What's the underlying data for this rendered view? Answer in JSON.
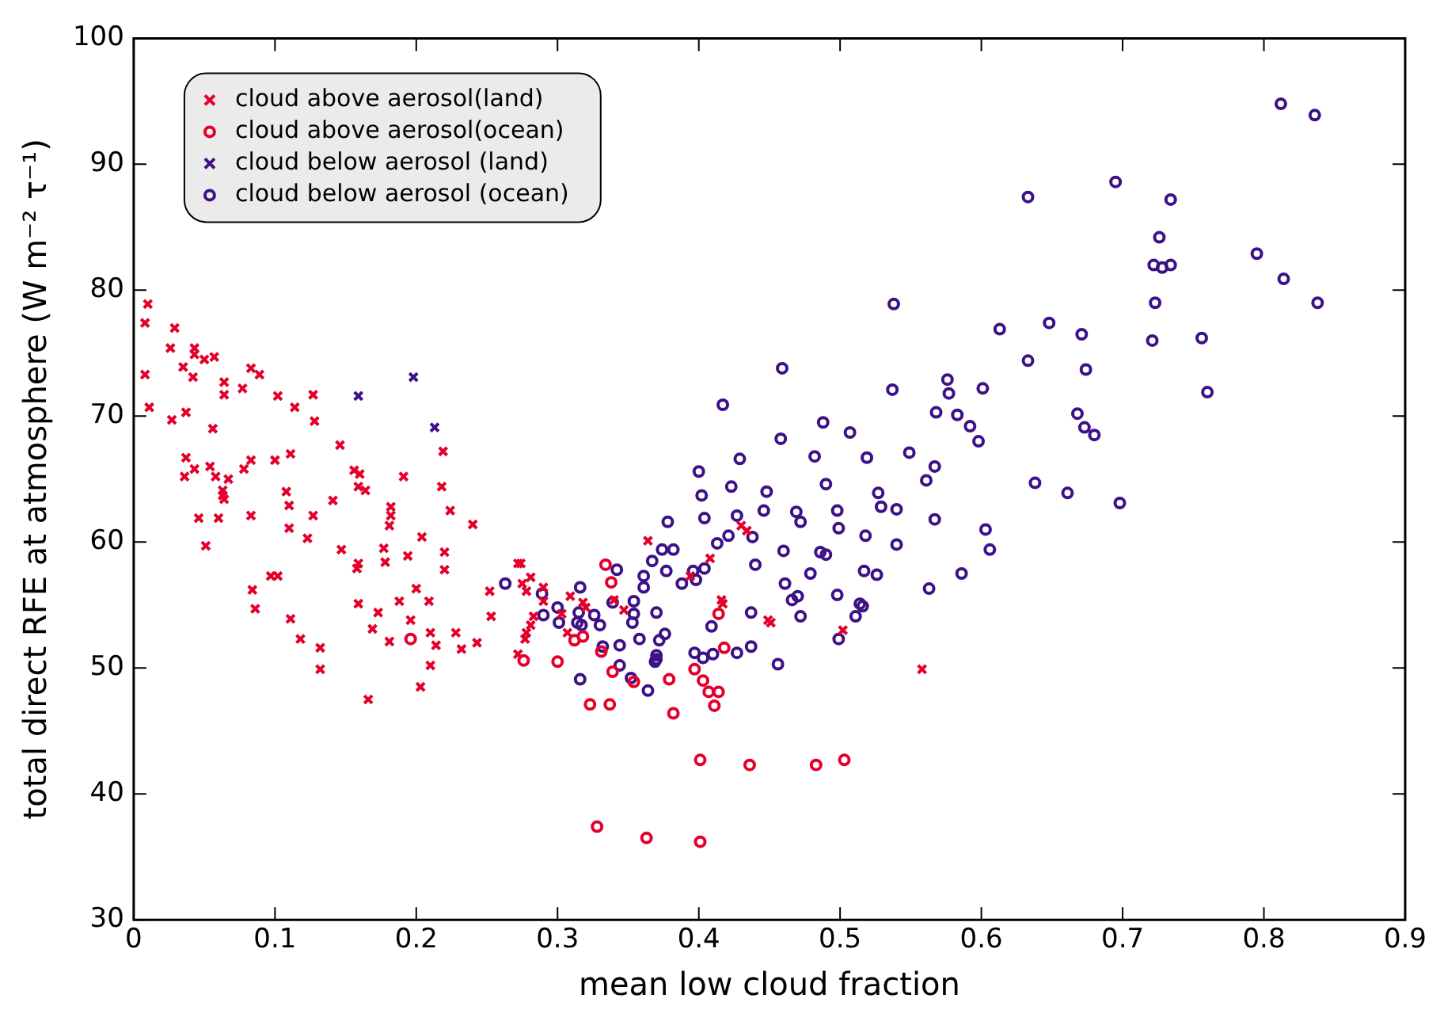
{
  "chart_data": {
    "type": "scatter",
    "xlabel": "mean low cloud fraction",
    "ylabel": "total direct RFE at atmosphere (W m⁻² τ⁻¹)",
    "xlim": [
      0,
      0.9
    ],
    "ylim": [
      30,
      100
    ],
    "xticks": [
      0,
      0.1,
      0.2,
      0.3,
      0.4,
      0.5,
      0.6,
      0.7,
      0.8,
      0.9
    ],
    "yticks": [
      30,
      40,
      50,
      60,
      70,
      80,
      90,
      100
    ],
    "grid": false,
    "legend": "top left",
    "series": [
      {
        "name": "cloud above aerosol(land)",
        "color": "#e4002b",
        "marker": "cross",
        "x": [
          0.01,
          0.008,
          0.029,
          0.026,
          0.043,
          0.043,
          0.05,
          0.057,
          0.035,
          0.042,
          0.008,
          0.083,
          0.089,
          0.064,
          0.064,
          0.077,
          0.102,
          0.114,
          0.127,
          0.128,
          0.011,
          0.027,
          0.037,
          0.056,
          0.146,
          0.219,
          0.037,
          0.036,
          0.043,
          0.054,
          0.058,
          0.067,
          0.078,
          0.083,
          0.1,
          0.111,
          0.063,
          0.063,
          0.064,
          0.108,
          0.11,
          0.11,
          0.046,
          0.06,
          0.083,
          0.127,
          0.141,
          0.123,
          0.051,
          0.156,
          0.16,
          0.159,
          0.164,
          0.191,
          0.218,
          0.182,
          0.182,
          0.181,
          0.224,
          0.24,
          0.204,
          0.147,
          0.159,
          0.158,
          0.177,
          0.178,
          0.194,
          0.22,
          0.22,
          0.084,
          0.086,
          0.097,
          0.102,
          0.111,
          0.118,
          0.132,
          0.132,
          0.159,
          0.173,
          0.169,
          0.181,
          0.188,
          0.2,
          0.196,
          0.209,
          0.21,
          0.214,
          0.228,
          0.232,
          0.243,
          0.21,
          0.203,
          0.166,
          0.252,
          0.253,
          0.272,
          0.274,
          0.281,
          0.275,
          0.278,
          0.29,
          0.29,
          0.283,
          0.281,
          0.278,
          0.277,
          0.272,
          0.303,
          0.307,
          0.309,
          0.318,
          0.32,
          0.347,
          0.34,
          0.364,
          0.408,
          0.416,
          0.417,
          0.43,
          0.434,
          0.394,
          0.449,
          0.451,
          0.502,
          0.558
        ],
        "values": [
          78.9,
          77.4,
          77.0,
          75.4,
          75.4,
          74.9,
          74.5,
          74.7,
          73.9,
          73.1,
          73.3,
          73.8,
          73.3,
          72.7,
          71.7,
          72.2,
          71.6,
          70.7,
          71.7,
          69.6,
          70.7,
          69.7,
          70.3,
          69.0,
          67.7,
          67.2,
          66.7,
          65.2,
          65.8,
          66.0,
          65.2,
          65.0,
          65.8,
          66.5,
          66.5,
          67.0,
          64.1,
          63.7,
          63.4,
          64.0,
          62.9,
          61.1,
          61.9,
          61.9,
          62.1,
          62.1,
          63.3,
          60.3,
          59.7,
          65.7,
          65.4,
          64.4,
          64.1,
          65.2,
          64.4,
          62.8,
          62.1,
          61.3,
          62.5,
          61.4,
          60.4,
          59.4,
          58.3,
          57.9,
          59.5,
          58.4,
          58.9,
          59.2,
          57.8,
          56.2,
          54.7,
          57.3,
          57.3,
          53.9,
          52.3,
          51.6,
          49.9,
          55.1,
          54.4,
          53.1,
          52.1,
          55.3,
          56.3,
          53.8,
          55.3,
          52.8,
          51.8,
          52.8,
          51.5,
          52.0,
          50.2,
          48.5,
          47.5,
          56.1,
          54.1,
          58.3,
          58.3,
          57.2,
          56.7,
          56.1,
          56.4,
          55.3,
          54.1,
          53.4,
          52.8,
          52.3,
          51.1,
          54.3,
          52.8,
          55.7,
          55.2,
          54.8,
          54.6,
          55.4,
          60.1,
          58.7,
          55.4,
          55.1,
          61.3,
          60.9,
          57.3,
          53.8,
          53.6,
          53.0,
          49.9
        ]
      },
      {
        "name": "cloud above aerosol(ocean)",
        "color": "#e4002b",
        "marker": "circle",
        "x": [
          0.196,
          0.276,
          0.3,
          0.312,
          0.318,
          0.331,
          0.334,
          0.338,
          0.323,
          0.337,
          0.339,
          0.354,
          0.379,
          0.382,
          0.397,
          0.403,
          0.407,
          0.414,
          0.411,
          0.418,
          0.414,
          0.401,
          0.436,
          0.328,
          0.363,
          0.401,
          0.483,
          0.503
        ],
        "values": [
          52.3,
          50.6,
          50.5,
          52.2,
          52.5,
          51.3,
          58.2,
          56.8,
          47.1,
          47.1,
          49.7,
          48.9,
          49.1,
          46.4,
          49.9,
          49.0,
          48.1,
          48.1,
          47.0,
          51.6,
          54.3,
          42.7,
          42.3,
          37.4,
          36.5,
          36.2,
          42.3,
          42.7
        ]
      },
      {
        "name": "cloud below aerosol (land)",
        "color": "#3d1187",
        "marker": "cross",
        "x": [
          0.159,
          0.198,
          0.213
        ],
        "values": [
          71.6,
          73.1,
          69.1
        ]
      },
      {
        "name": "cloud below aerosol (ocean)",
        "color": "#3d1187",
        "marker": "circle",
        "x": [
          0.263,
          0.289,
          0.29,
          0.3,
          0.301,
          0.316,
          0.315,
          0.314,
          0.317,
          0.326,
          0.33,
          0.316,
          0.332,
          0.342,
          0.339,
          0.344,
          0.344,
          0.352,
          0.354,
          0.354,
          0.353,
          0.358,
          0.361,
          0.361,
          0.367,
          0.37,
          0.372,
          0.376,
          0.37,
          0.369,
          0.37,
          0.364,
          0.374,
          0.382,
          0.378,
          0.377,
          0.388,
          0.396,
          0.398,
          0.404,
          0.4,
          0.402,
          0.404,
          0.413,
          0.421,
          0.427,
          0.423,
          0.429,
          0.417,
          0.438,
          0.44,
          0.448,
          0.446,
          0.458,
          0.459,
          0.409,
          0.397,
          0.403,
          0.41,
          0.427,
          0.437,
          0.437,
          0.456,
          0.46,
          0.461,
          0.538,
          0.613,
          0.648,
          0.671,
          0.633,
          0.674,
          0.537,
          0.576,
          0.577,
          0.601,
          0.568,
          0.583,
          0.592,
          0.598,
          0.668,
          0.673,
          0.68,
          0.488,
          0.507,
          0.482,
          0.519,
          0.549,
          0.567,
          0.561,
          0.49,
          0.527,
          0.529,
          0.54,
          0.567,
          0.498,
          0.499,
          0.469,
          0.472,
          0.518,
          0.54,
          0.603,
          0.606,
          0.638,
          0.661,
          0.698,
          0.486,
          0.49,
          0.479,
          0.517,
          0.526,
          0.586,
          0.563,
          0.466,
          0.47,
          0.498,
          0.514,
          0.516,
          0.511,
          0.472,
          0.499,
          0.812,
          0.836,
          0.695,
          0.633,
          0.734,
          0.726,
          0.795,
          0.722,
          0.728,
          0.734,
          0.814,
          0.838,
          0.723,
          0.721,
          0.756,
          0.76
        ],
        "values": [
          56.7,
          55.9,
          54.2,
          54.8,
          53.6,
          56.4,
          54.4,
          53.6,
          53.4,
          54.2,
          53.4,
          49.1,
          51.7,
          57.8,
          55.2,
          51.8,
          50.2,
          49.2,
          55.3,
          54.3,
          53.6,
          52.3,
          57.3,
          56.4,
          58.5,
          54.4,
          52.2,
          52.7,
          51.0,
          50.5,
          50.7,
          48.2,
          59.4,
          59.4,
          61.6,
          57.7,
          56.7,
          57.7,
          57.0,
          57.9,
          65.6,
          63.7,
          61.9,
          59.9,
          60.5,
          62.1,
          64.4,
          66.6,
          70.9,
          60.4,
          58.2,
          64.0,
          62.5,
          68.2,
          73.8,
          53.3,
          51.2,
          50.8,
          51.1,
          51.2,
          51.7,
          54.4,
          50.3,
          59.3,
          56.7,
          78.9,
          76.9,
          77.4,
          76.5,
          74.4,
          73.7,
          72.1,
          72.9,
          71.8,
          72.2,
          70.3,
          70.1,
          69.2,
          68.0,
          70.2,
          69.1,
          68.5,
          69.5,
          68.7,
          66.8,
          66.7,
          67.1,
          66.0,
          64.9,
          64.6,
          63.9,
          62.8,
          62.6,
          61.8,
          62.5,
          61.1,
          62.4,
          61.6,
          60.5,
          59.8,
          61.0,
          59.4,
          64.7,
          63.9,
          63.1,
          59.2,
          59.0,
          57.5,
          57.7,
          57.4,
          57.5,
          56.3,
          55.4,
          55.7,
          55.8,
          55.1,
          54.9,
          54.1,
          54.1,
          52.3,
          94.8,
          93.9,
          88.6,
          87.4,
          87.2,
          84.2,
          82.9,
          82.0,
          81.8,
          82.0,
          80.9,
          79.0,
          79.0,
          76.0,
          76.2,
          71.9
        ]
      }
    ]
  }
}
